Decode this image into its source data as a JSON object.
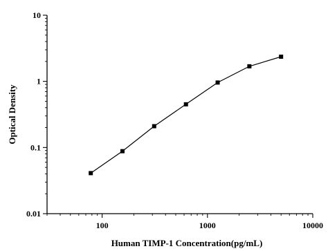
{
  "chart_data": {
    "type": "line",
    "title": "",
    "xlabel": "Human TIMP-1 Concentration(pg/mL)",
    "ylabel": "Optical Density",
    "x_scale": "log",
    "y_scale": "log",
    "xlim": [
      30,
      10000
    ],
    "ylim": [
      0.01,
      10
    ],
    "x_ticks": [
      100,
      1000,
      10000
    ],
    "x_tick_labels": [
      "100",
      "1000",
      "10000"
    ],
    "y_ticks": [
      0.01,
      0.1,
      1,
      10
    ],
    "y_tick_labels": [
      "0.01",
      "0.1",
      "1",
      "10"
    ],
    "grid": false,
    "legend": "none",
    "marker": "square",
    "color": "#000000",
    "series": [
      {
        "x": [
          78,
          156,
          312,
          625,
          1250,
          2500,
          5000
        ],
        "y": [
          0.041,
          0.088,
          0.21,
          0.45,
          0.96,
          1.69,
          2.36
        ]
      }
    ]
  }
}
